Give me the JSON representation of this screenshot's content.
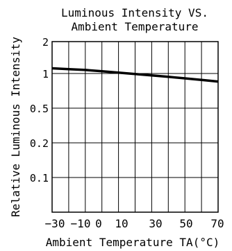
{
  "chart_data": {
    "type": "line",
    "title_lines": [
      "Luminous Intensity VS.",
      "Ambient Temperature"
    ],
    "xlabel": "Ambient Temperature TA(°C)",
    "ylabel": "Relative Luminous Intensity",
    "y_ticks": [
      "2",
      "1",
      "0.5",
      "0.2",
      "0.1"
    ],
    "x_ticks": [
      "−30",
      "−10",
      "0",
      "10",
      "30",
      "50",
      "70"
    ],
    "xlim": [
      -30,
      70
    ],
    "grid": true,
    "series": [
      {
        "x": [
          -30,
          -20,
          -10,
          0,
          10,
          20,
          30,
          40,
          50,
          60,
          70
        ],
        "y": [
          1.12,
          1.1,
          1.08,
          1.05,
          1.02,
          0.99,
          0.96,
          0.93,
          0.9,
          0.87,
          0.84
        ]
      }
    ]
  }
}
